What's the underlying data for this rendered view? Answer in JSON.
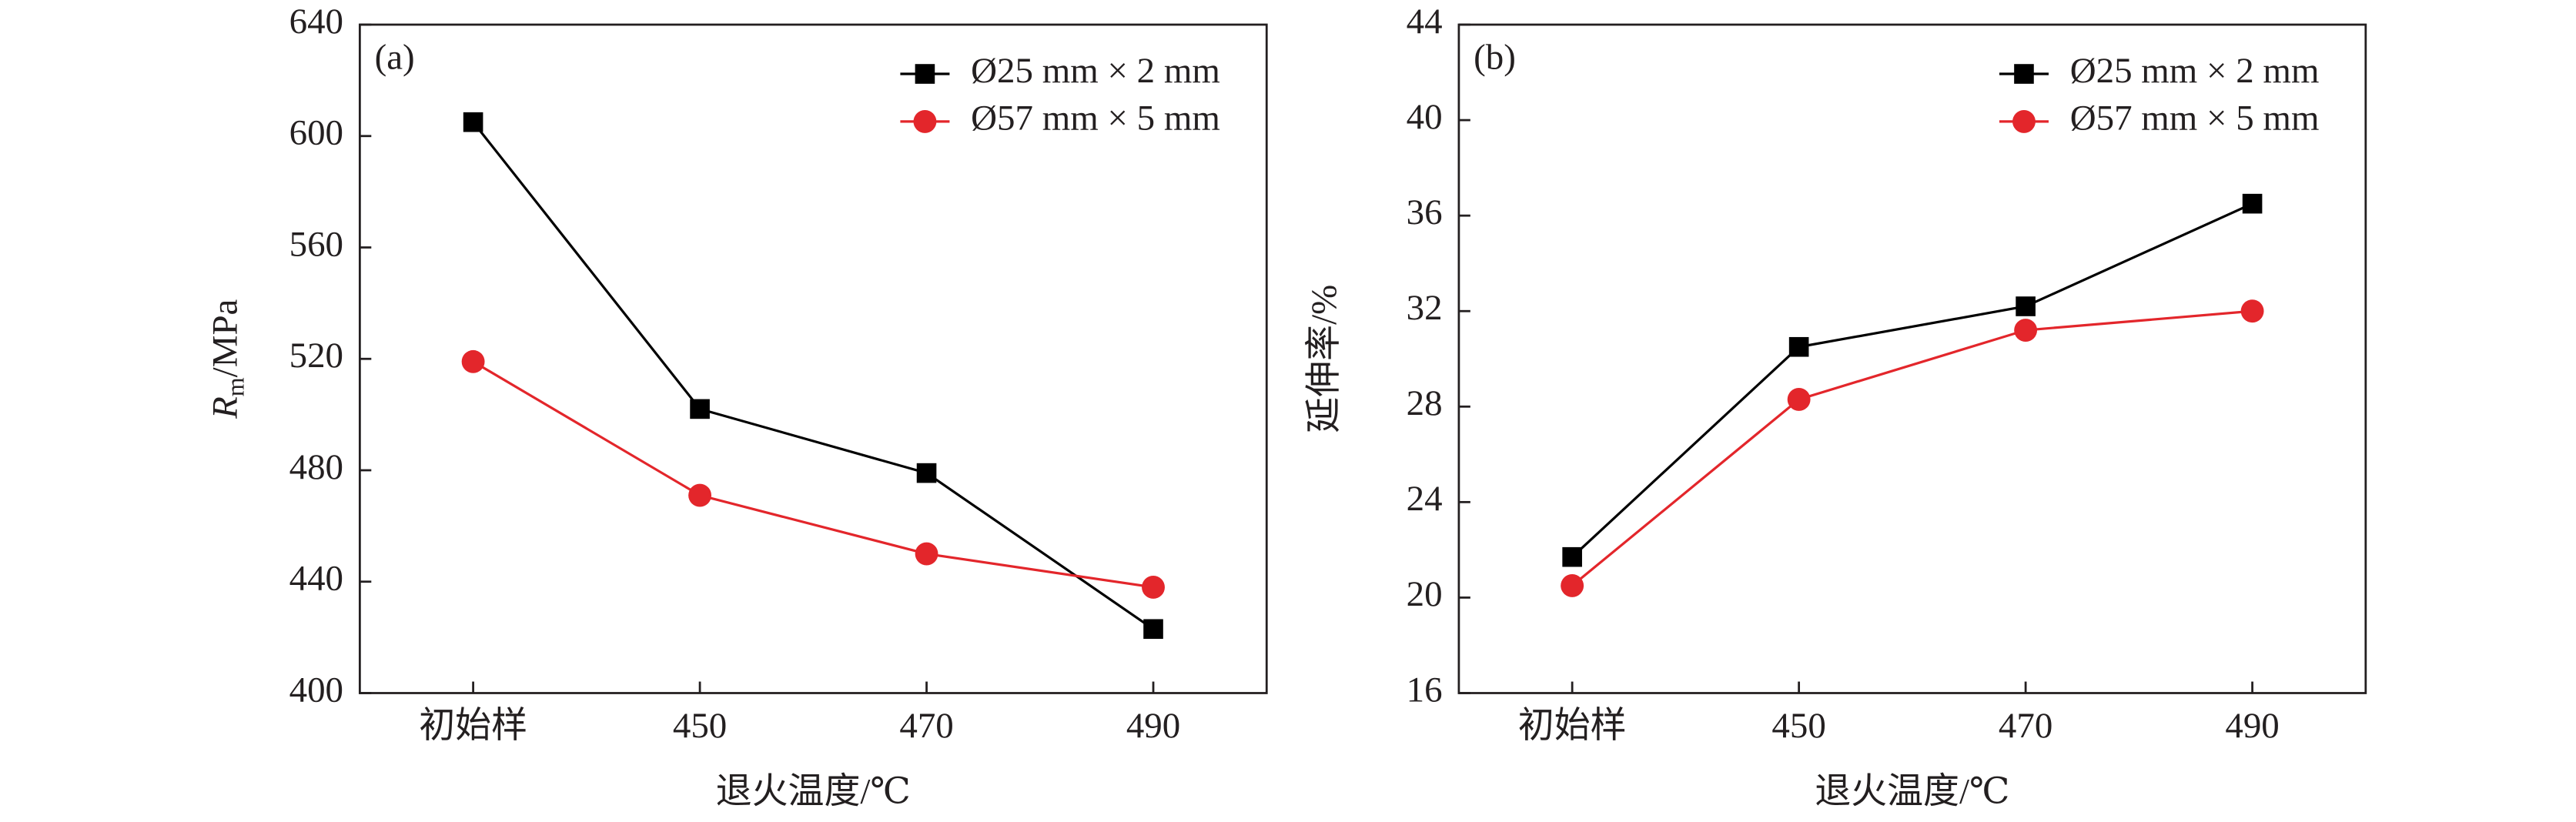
{
  "chart_data": [
    {
      "type": "line",
      "annotation": "(a)",
      "xlabel": "退火温度/℃",
      "ylabel": [
        "R",
        "m",
        "/MPa"
      ],
      "categories": [
        "初始样",
        "450",
        "470",
        "490"
      ],
      "series": [
        {
          "name": "Ø25 mm × 2 mm",
          "color": "#000000",
          "marker": "square",
          "values": [
            605,
            502,
            479,
            423
          ]
        },
        {
          "name": "Ø57 mm × 5 mm",
          "color": "#e3262b",
          "marker": "circle",
          "values": [
            519,
            471,
            450,
            438
          ]
        }
      ],
      "ylim": [
        400,
        640
      ],
      "yticks": [
        400,
        440,
        480,
        520,
        560,
        600,
        640
      ],
      "legend": "upper right"
    },
    {
      "type": "line",
      "annotation": "(b)",
      "xlabel": "退火温度/℃",
      "ylabel": [
        "延伸率/%"
      ],
      "categories": [
        "初始样",
        "450",
        "470",
        "490"
      ],
      "series": [
        {
          "name": "Ø25 mm × 2 mm",
          "color": "#000000",
          "marker": "square",
          "values": [
            21.7,
            30.5,
            32.2,
            36.5
          ]
        },
        {
          "name": "Ø57 mm × 5 mm",
          "color": "#e3262b",
          "marker": "circle",
          "values": [
            20.5,
            28.3,
            31.2,
            32.0
          ]
        }
      ],
      "ylim": [
        16,
        44
      ],
      "yticks": [
        16,
        20,
        24,
        28,
        32,
        36,
        40,
        44
      ],
      "legend": "upper right"
    }
  ]
}
